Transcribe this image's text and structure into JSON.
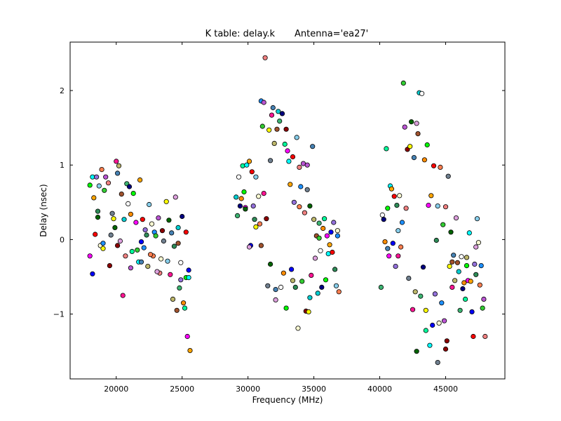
{
  "chart_data": {
    "type": "scatter",
    "title": "K table: delay.k",
    "subtitle": "Antenna='ea27'",
    "xlabel": "Frequency (MHz)",
    "ylabel": "Delay (nsec)",
    "xlim": [
      16500,
      49500
    ],
    "ylim": [
      -1.87,
      2.65
    ],
    "xticks": [
      20000,
      25000,
      30000,
      35000,
      40000,
      45000
    ],
    "yticks": [
      -1,
      0,
      1,
      2
    ],
    "xtick_labels": [
      "20000",
      "25000",
      "30000",
      "35000",
      "40000",
      "45000"
    ],
    "ytick_labels": [
      "−1",
      "0",
      "1",
      "2"
    ],
    "grid": false,
    "legend": "none",
    "marker": "circle",
    "palette": [
      "#00ff00",
      "#ff00ff",
      "#00ffff",
      "#ffa500",
      "#0000ff",
      "#ff0000",
      "#9370db",
      "#2e8b57",
      "#87ceeb",
      "#fafad2",
      "#ff7f50",
      "#1e90ff",
      "#32cd32",
      "#ba55d3",
      "#f08080",
      "#8b0000",
      "#708090",
      "#ffff00",
      "#006400",
      "#ff1493",
      "#4682b4",
      "#bdb76b",
      "#dda0dd",
      "#a0522d",
      "#00ced1",
      "#3cb371",
      "#ffffff",
      "#000080",
      "#ff8c00",
      "#00fa9a"
    ],
    "points": [
      [
        18000,
        0.73
      ],
      [
        18000,
        -0.22
      ],
      [
        18200,
        0.84
      ],
      [
        18300,
        0.56
      ],
      [
        18200,
        -0.46
      ],
      [
        18400,
        0.07
      ],
      [
        18500,
        0.84
      ],
      [
        18600,
        0.38
      ],
      [
        18700,
        0.72
      ],
      [
        18800,
        -0.08
      ],
      [
        18900,
        0.94
      ],
      [
        19000,
        -0.05
      ],
      [
        19100,
        0.66
      ],
      [
        19200,
        0.84
      ],
      [
        19400,
        0.76
      ],
      [
        19500,
        -0.35
      ],
      [
        19700,
        0.35
      ],
      [
        19800,
        0.28
      ],
      [
        19900,
        0.16
      ],
      [
        20000,
        1.05
      ],
      [
        20100,
        0.89
      ],
      [
        20200,
        0.99
      ],
      [
        20300,
        -0.02
      ],
      [
        20400,
        0.61
      ],
      [
        20600,
        0.27
      ],
      [
        20800,
        0.75
      ],
      [
        20900,
        0.48
      ],
      [
        21000,
        0.71
      ],
      [
        21100,
        0.34
      ],
      [
        21200,
        -0.16
      ],
      [
        21300,
        0.62
      ],
      [
        21500,
        0.23
      ],
      [
        21700,
        -0.3
      ],
      [
        21800,
        0.8
      ],
      [
        21900,
        -0.03
      ],
      [
        22000,
        0.27
      ],
      [
        22200,
        0.13
      ],
      [
        22300,
        0.06
      ],
      [
        22500,
        0.47
      ],
      [
        22700,
        0.21
      ],
      [
        22800,
        -0.22
      ],
      [
        22900,
        0.1
      ],
      [
        23000,
        0.05
      ],
      [
        23200,
        0.29
      ],
      [
        23300,
        -0.45
      ],
      [
        23500,
        0.12
      ],
      [
        23600,
        -0.02
      ],
      [
        23800,
        0.51
      ],
      [
        24000,
        0.26
      ],
      [
        24100,
        -0.47
      ],
      [
        24200,
        0.09
      ],
      [
        24300,
        -0.8
      ],
      [
        24500,
        0.57
      ],
      [
        24600,
        -0.95
      ],
      [
        24700,
        0.16
      ],
      [
        24800,
        -0.65
      ],
      [
        24900,
        -0.31
      ],
      [
        25000,
        0.31
      ],
      [
        25100,
        -0.85
      ],
      [
        25200,
        -0.92
      ],
      [
        25300,
        -0.51
      ],
      [
        25400,
        -1.3
      ],
      [
        25500,
        -0.51
      ],
      [
        25600,
        -1.49
      ],
      [
        25500,
        -0.41
      ],
      [
        25300,
        0.1
      ],
      [
        24900,
        -0.54
      ],
      [
        24400,
        -0.09
      ],
      [
        23900,
        -0.29
      ],
      [
        23400,
        -0.26
      ],
      [
        22600,
        -0.2
      ],
      [
        22100,
        -0.11
      ],
      [
        21600,
        -0.14
      ],
      [
        21100,
        -0.38
      ],
      [
        20700,
        -0.22
      ],
      [
        20100,
        -0.08
      ],
      [
        19600,
        0.06
      ],
      [
        19000,
        -0.12
      ],
      [
        18600,
        0.3
      ],
      [
        20500,
        -0.75
      ],
      [
        21900,
        -0.3
      ],
      [
        22400,
        -0.36
      ],
      [
        23100,
        -0.43
      ],
      [
        24700,
        -0.05
      ],
      [
        29100,
        0.57
      ],
      [
        29200,
        0.32
      ],
      [
        29300,
        0.84
      ],
      [
        29400,
        0.45
      ],
      [
        29500,
        0.55
      ],
      [
        29600,
        0.99
      ],
      [
        29700,
        0.64
      ],
      [
        29800,
        0.43
      ],
      [
        29900,
        1.0
      ],
      [
        30100,
        1.05
      ],
      [
        30200,
        -0.08
      ],
      [
        30300,
        0.91
      ],
      [
        30400,
        0.45
      ],
      [
        30500,
        0.27
      ],
      [
        30600,
        0.84
      ],
      [
        30800,
        0.58
      ],
      [
        30900,
        0.21
      ],
      [
        31000,
        1.86
      ],
      [
        31100,
        1.52
      ],
      [
        31200,
        1.84
      ],
      [
        31300,
        2.44
      ],
      [
        31400,
        0.28
      ],
      [
        31500,
        -0.62
      ],
      [
        31600,
        1.47
      ],
      [
        31700,
        -0.33
      ],
      [
        31800,
        1.67
      ],
      [
        31900,
        1.77
      ],
      [
        32000,
        1.29
      ],
      [
        32100,
        -0.81
      ],
      [
        32200,
        1.48
      ],
      [
        32300,
        1.72
      ],
      [
        32400,
        1.59
      ],
      [
        32500,
        -0.64
      ],
      [
        32600,
        1.69
      ],
      [
        32700,
        -0.45
      ],
      [
        32800,
        1.28
      ],
      [
        32900,
        -0.92
      ],
      [
        33000,
        1.19
      ],
      [
        33100,
        1.05
      ],
      [
        33200,
        0.74
      ],
      [
        33300,
        -0.4
      ],
      [
        33400,
        1.11
      ],
      [
        33500,
        0.5
      ],
      [
        33600,
        -0.64
      ],
      [
        33700,
        1.37
      ],
      [
        33800,
        -1.19
      ],
      [
        33900,
        0.44
      ],
      [
        34000,
        0.71
      ],
      [
        34100,
        -0.56
      ],
      [
        34200,
        1.02
      ],
      [
        34300,
        0.36
      ],
      [
        34400,
        -0.96
      ],
      [
        34500,
        0.67
      ],
      [
        34600,
        -0.97
      ],
      [
        34700,
        0.45
      ],
      [
        34800,
        -0.48
      ],
      [
        34900,
        1.25
      ],
      [
        35000,
        0.27
      ],
      [
        35100,
        -0.25
      ],
      [
        35200,
        0.05
      ],
      [
        35300,
        -0.72
      ],
      [
        35400,
        0.22
      ],
      [
        35500,
        -0.15
      ],
      [
        35600,
        -0.64
      ],
      [
        35700,
        0.15
      ],
      [
        35800,
        0.28
      ],
      [
        35900,
        -0.54
      ],
      [
        36000,
        0.05
      ],
      [
        36100,
        -0.19
      ],
      [
        36200,
        -0.07
      ],
      [
        36300,
        0.1
      ],
      [
        36400,
        -0.17
      ],
      [
        36500,
        0.23
      ],
      [
        36600,
        -0.4
      ],
      [
        36700,
        -0.62
      ],
      [
        36800,
        0.12
      ],
      [
        36900,
        -0.7
      ],
      [
        36800,
        0.05
      ],
      [
        35400,
        0.02
      ],
      [
        34500,
        1.0
      ],
      [
        33900,
        0.97
      ],
      [
        32900,
        1.48
      ],
      [
        31700,
        1.06
      ],
      [
        30600,
        0.17
      ],
      [
        29800,
        0.41
      ],
      [
        31200,
        0.62
      ],
      [
        32100,
        -0.67
      ],
      [
        33400,
        -0.55
      ],
      [
        30100,
        -0.1
      ],
      [
        31000,
        -0.08
      ],
      [
        34700,
        -0.78
      ],
      [
        40100,
        -0.64
      ],
      [
        40200,
        0.33
      ],
      [
        40300,
        0.27
      ],
      [
        40400,
        -0.03
      ],
      [
        40500,
        1.22
      ],
      [
        40600,
        0.42
      ],
      [
        40700,
        -0.22
      ],
      [
        40800,
        0.72
      ],
      [
        40900,
        0.68
      ],
      [
        41000,
        -0.05
      ],
      [
        41100,
        0.58
      ],
      [
        41200,
        -0.36
      ],
      [
        41300,
        0.46
      ],
      [
        41400,
        0.12
      ],
      [
        41500,
        0.59
      ],
      [
        41600,
        -0.1
      ],
      [
        41700,
        0.23
      ],
      [
        41800,
        2.1
      ],
      [
        41900,
        1.51
      ],
      [
        42000,
        0.42
      ],
      [
        42100,
        1.21
      ],
      [
        42200,
        -0.52
      ],
      [
        42300,
        1.25
      ],
      [
        42400,
        1.58
      ],
      [
        42500,
        -0.94
      ],
      [
        42600,
        1.1
      ],
      [
        42700,
        -0.7
      ],
      [
        42800,
        1.56
      ],
      [
        42900,
        1.42
      ],
      [
        43000,
        1.97
      ],
      [
        43100,
        -0.76
      ],
      [
        43200,
        1.96
      ],
      [
        43300,
        -0.37
      ],
      [
        43400,
        1.07
      ],
      [
        43500,
        -1.22
      ],
      [
        43600,
        1.27
      ],
      [
        43700,
        0.46
      ],
      [
        43800,
        -1.42
      ],
      [
        43900,
        0.59
      ],
      [
        44000,
        -1.15
      ],
      [
        44100,
        0.99
      ],
      [
        44200,
        -0.73
      ],
      [
        44300,
        -0.01
      ],
      [
        44400,
        0.45
      ],
      [
        44500,
        -1.12
      ],
      [
        44600,
        0.97
      ],
      [
        44700,
        -0.85
      ],
      [
        44800,
        0.2
      ],
      [
        44900,
        -1.09
      ],
      [
        45000,
        0.44
      ],
      [
        45100,
        -1.36
      ],
      [
        45200,
        0.85
      ],
      [
        45300,
        -0.36
      ],
      [
        45400,
        0.1
      ],
      [
        45500,
        -0.64
      ],
      [
        45600,
        -0.21
      ],
      [
        45700,
        -0.55
      ],
      [
        45800,
        0.29
      ],
      [
        45900,
        -0.31
      ],
      [
        46000,
        -0.43
      ],
      [
        46100,
        -0.95
      ],
      [
        46200,
        -0.23
      ],
      [
        46300,
        -0.66
      ],
      [
        46400,
        -0.58
      ],
      [
        46500,
        -0.8
      ],
      [
        46600,
        -0.35
      ],
      [
        46700,
        -0.55
      ],
      [
        46800,
        0.09
      ],
      [
        46900,
        -0.56
      ],
      [
        47000,
        -0.97
      ],
      [
        47100,
        -1.3
      ],
      [
        47200,
        -0.33
      ],
      [
        47300,
        -0.47
      ],
      [
        47400,
        0.28
      ],
      [
        47500,
        -0.04
      ],
      [
        47600,
        -0.61
      ],
      [
        47700,
        -0.35
      ],
      [
        47800,
        -0.92
      ],
      [
        47900,
        -0.8
      ],
      [
        48000,
        -1.3
      ],
      [
        45000,
        -1.47
      ],
      [
        44400,
        -1.65
      ],
      [
        43500,
        -0.95
      ],
      [
        42800,
        -1.5
      ],
      [
        41400,
        -0.22
      ],
      [
        40600,
        -0.12
      ],
      [
        46600,
        -0.24
      ],
      [
        47300,
        -0.1
      ],
      [
        45500,
        -0.3
      ]
    ]
  }
}
